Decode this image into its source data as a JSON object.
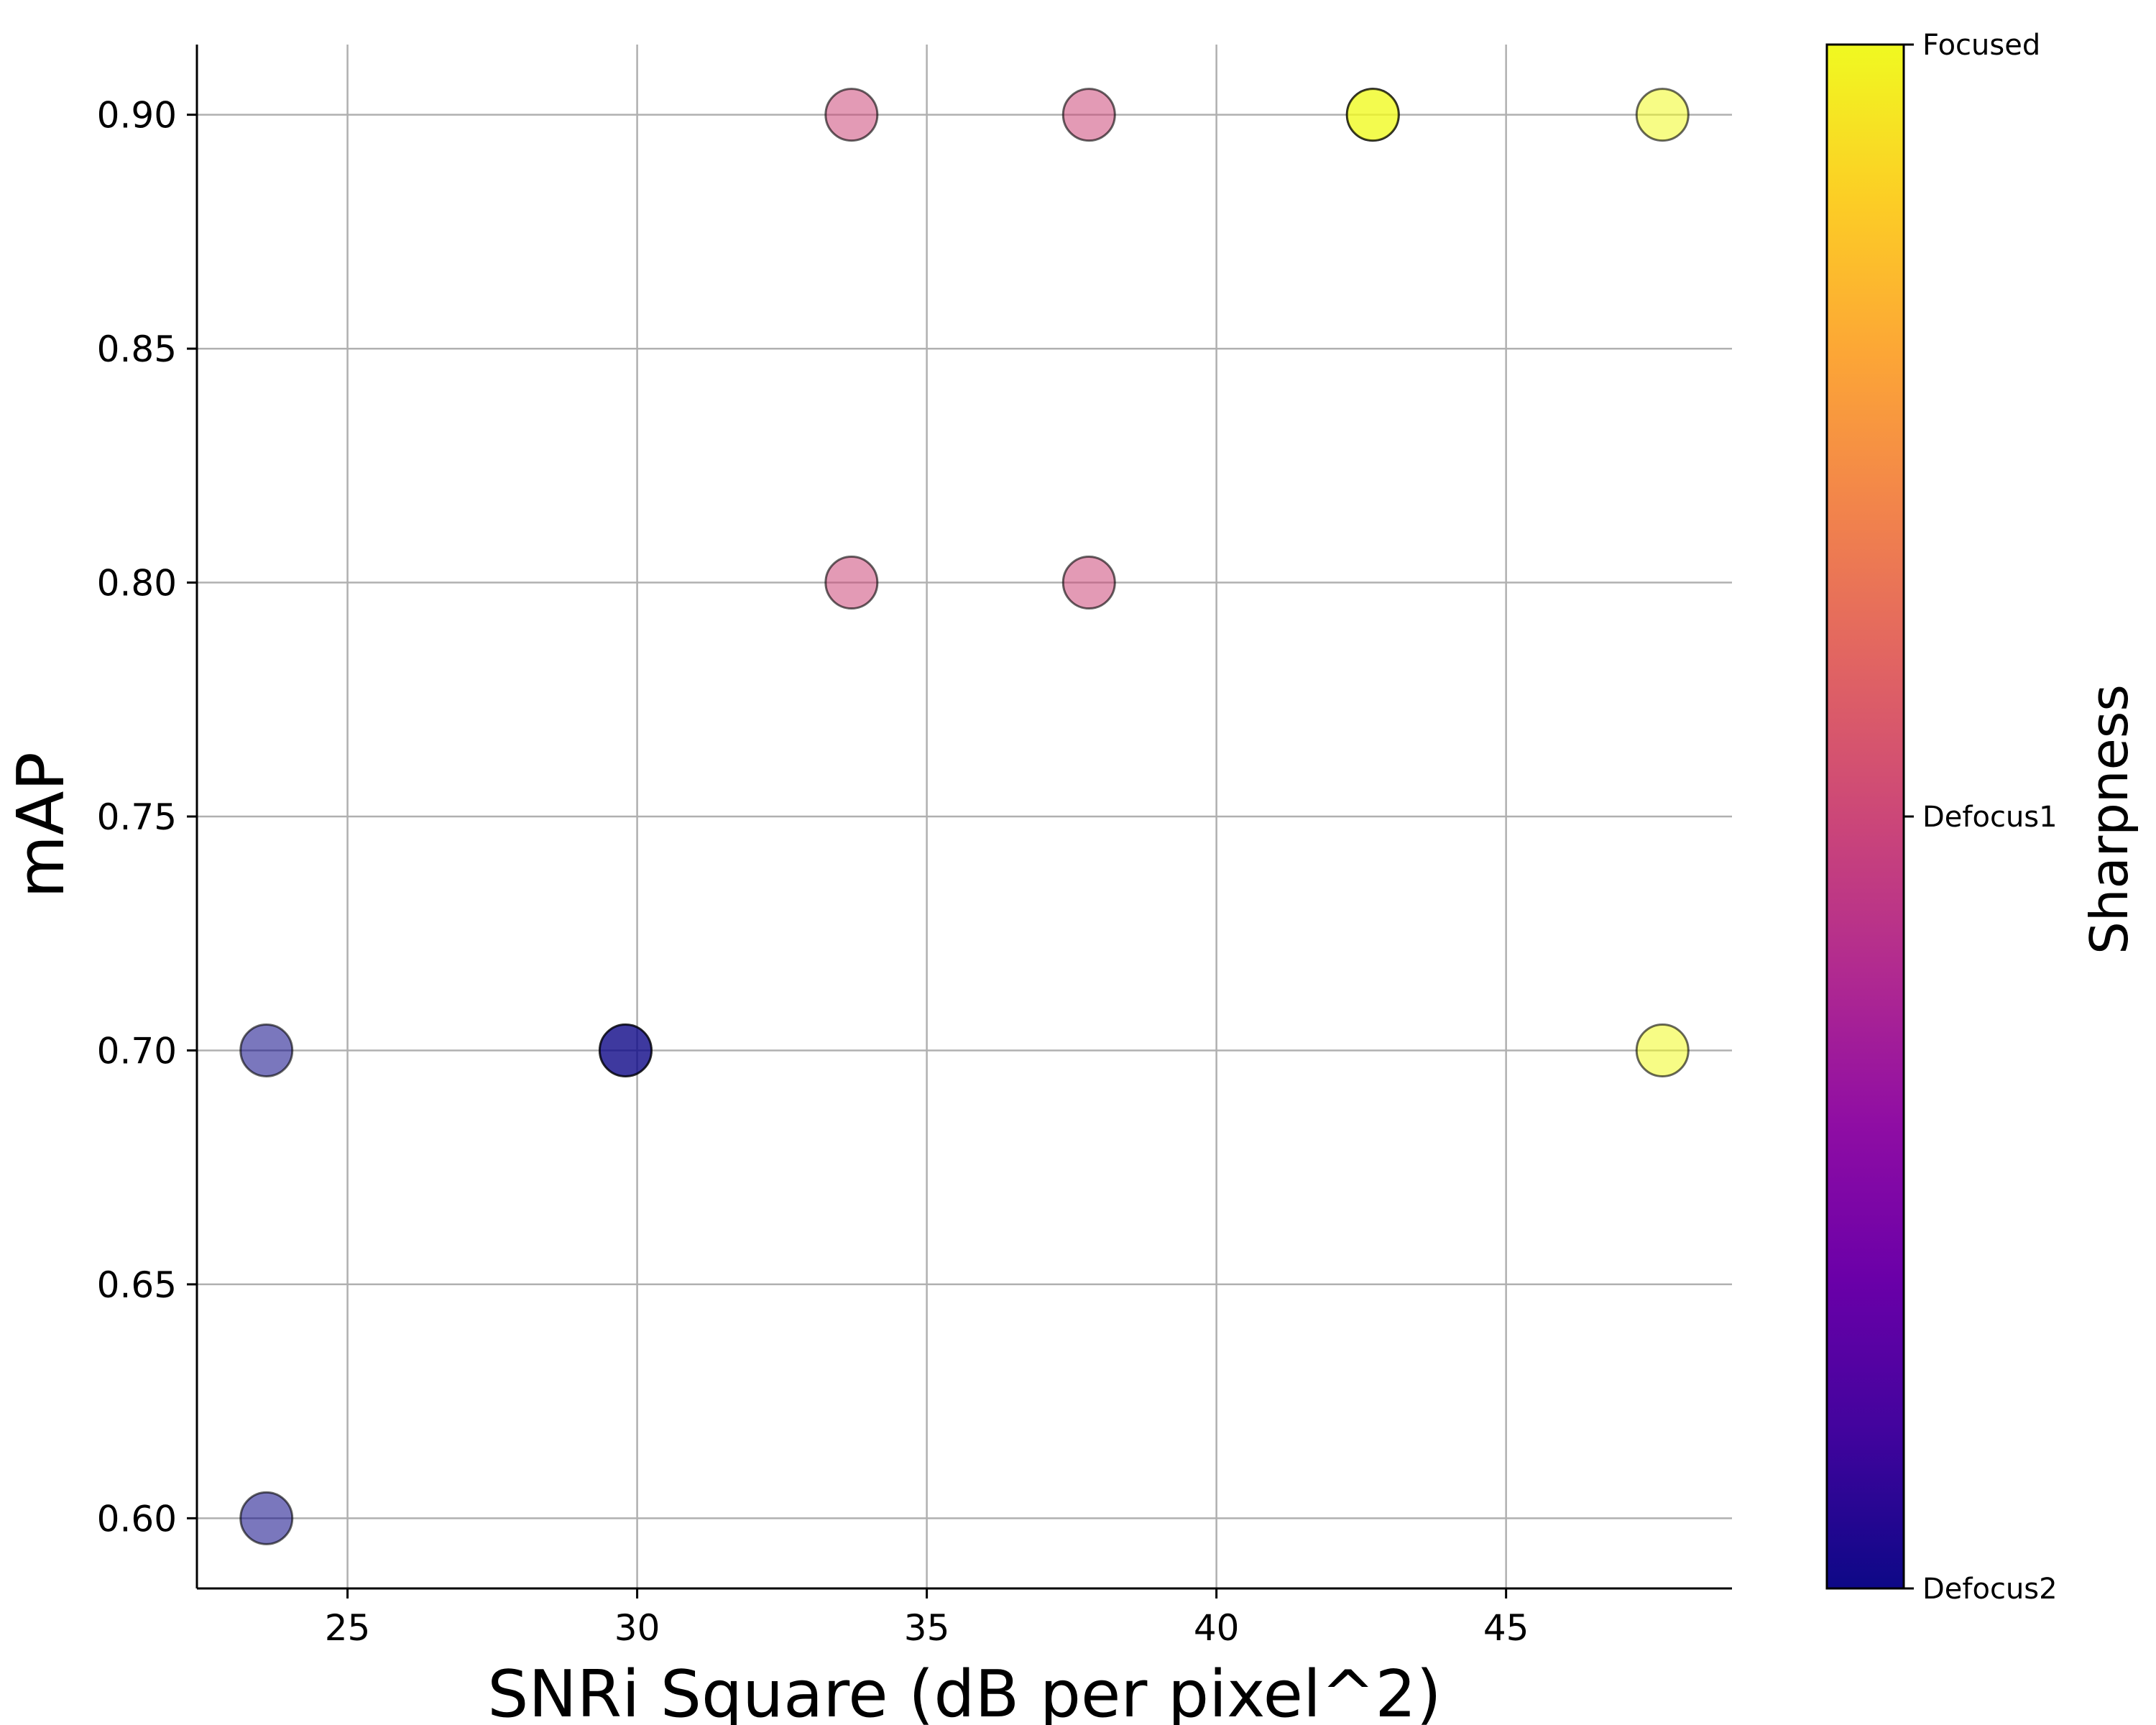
{
  "chart_data": {
    "type": "scatter",
    "title": "",
    "xlabel": "SNRi Square (dB per pixel^2)",
    "ylabel": "mAP",
    "xlim": [
      22.4,
      48.9
    ],
    "ylim": [
      0.585,
      0.915
    ],
    "xticks": [
      25,
      30,
      35,
      40,
      45
    ],
    "yticks": [
      0.6,
      0.65,
      0.7,
      0.75,
      0.8,
      0.85,
      0.9
    ],
    "xtick_labels": [
      "25",
      "30",
      "35",
      "40",
      "45"
    ],
    "ytick_labels": [
      "0.60",
      "0.65",
      "0.70",
      "0.75",
      "0.80",
      "0.85",
      "0.90"
    ],
    "grid": true,
    "colorbar": {
      "label": "Sharpness",
      "colormap": "plasma",
      "ticks": [
        {
          "value": 0,
          "label": "Defocus2"
        },
        {
          "value": 0.5,
          "label": "Defocus1"
        },
        {
          "value": 1,
          "label": "Focused"
        }
      ]
    },
    "points": [
      {
        "x": 23.6,
        "y": 0.7,
        "sharpness": 0,
        "alpha": 0.55
      },
      {
        "x": 23.6,
        "y": 0.6,
        "sharpness": 0,
        "alpha": 0.55
      },
      {
        "x": 29.8,
        "y": 0.7,
        "sharpness": 0,
        "alpha": 0.55
      },
      {
        "x": 29.8,
        "y": 0.7,
        "sharpness": 0,
        "alpha": 0.55
      },
      {
        "x": 33.7,
        "y": 0.9,
        "sharpness": 0.5,
        "alpha": 0.55
      },
      {
        "x": 33.7,
        "y": 0.8,
        "sharpness": 0.5,
        "alpha": 0.55
      },
      {
        "x": 37.8,
        "y": 0.9,
        "sharpness": 0.5,
        "alpha": 0.55
      },
      {
        "x": 37.8,
        "y": 0.8,
        "sharpness": 0.5,
        "alpha": 0.55
      },
      {
        "x": 42.7,
        "y": 0.9,
        "sharpness": 1,
        "alpha": 0.55
      },
      {
        "x": 42.7,
        "y": 0.9,
        "sharpness": 1,
        "alpha": 0.55
      },
      {
        "x": 47.7,
        "y": 0.9,
        "sharpness": 1,
        "alpha": 0.55
      },
      {
        "x": 47.7,
        "y": 0.7,
        "sharpness": 1,
        "alpha": 0.55
      }
    ]
  }
}
